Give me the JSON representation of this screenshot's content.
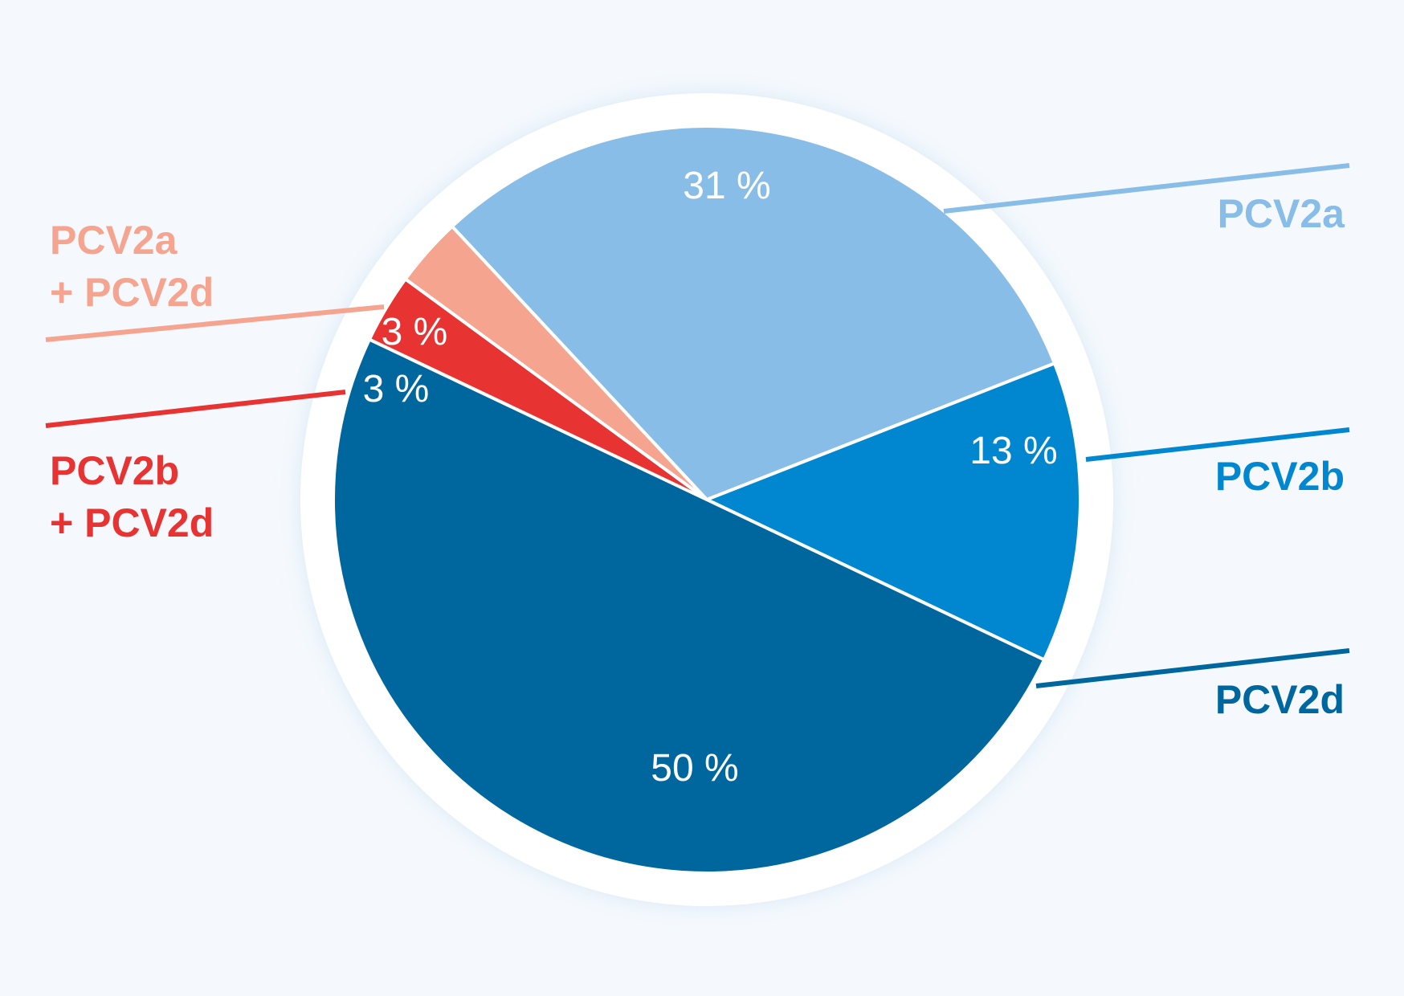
{
  "chart_data": {
    "type": "pie",
    "slices": [
      {
        "label": "PCV2a",
        "value": 31,
        "value_label": "31 %",
        "color": "#88bde8"
      },
      {
        "label": "PCV2b",
        "value": 13,
        "value_label": "13 %",
        "color": "#0087d0"
      },
      {
        "label": "PCV2d",
        "value": 50,
        "value_label": "50 %",
        "color": "#00679e"
      },
      {
        "label": "PCV2b + PCV2d",
        "value": 3,
        "value_label": "3 %",
        "color": "#e73331"
      },
      {
        "label": "PCV2a + PCV2d",
        "value": 3,
        "value_label": "3 %",
        "color": "#f5a58f"
      }
    ]
  },
  "legend_labels": {
    "pcv2a": "PCV2a",
    "pcv2b": "PCV2b",
    "pcv2d": "PCV2d",
    "pcv2b_pcv2d_line1": "PCV2b",
    "pcv2b_pcv2d_line2": "+ PCV2d",
    "pcv2a_pcv2d_line1": "PCV2a",
    "pcv2a_pcv2d_line2": "+ PCV2d"
  },
  "colors": {
    "background": "#f5f9fd",
    "ring": "#ffffff",
    "pcv2a": "#88bde8",
    "pcv2b": "#0087d0",
    "pcv2d": "#00679e",
    "pcv2b_pcv2d": "#e73331",
    "pcv2a_pcv2d": "#f5a58f"
  }
}
